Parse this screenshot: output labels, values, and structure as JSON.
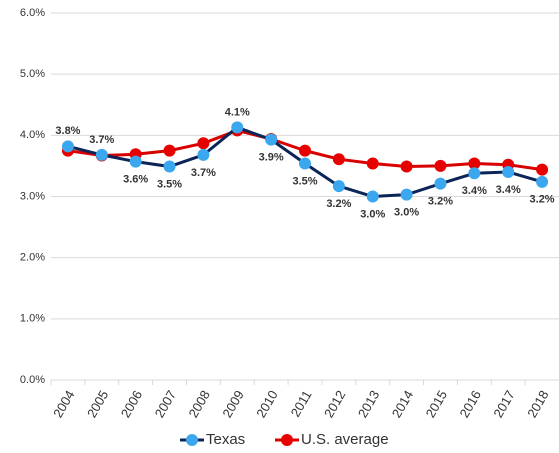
{
  "chart_data": {
    "type": "line",
    "categories": [
      "2004",
      "2005",
      "2006",
      "2007",
      "2008",
      "2009",
      "2010",
      "2011",
      "2012",
      "2013",
      "2014",
      "2015",
      "2016",
      "2017",
      "2018"
    ],
    "series": [
      {
        "name": "Texas",
        "color": "#0b2559",
        "marker_color": "#3ba7ee",
        "values": [
          3.82,
          3.68,
          3.57,
          3.49,
          3.68,
          4.13,
          3.93,
          3.54,
          3.17,
          3.0,
          3.03,
          3.21,
          3.38,
          3.4,
          3.24
        ],
        "value_labels": [
          "3.8%",
          "3.7%",
          "3.6%",
          "3.5%",
          "3.7%",
          "4.1%",
          "3.9%",
          "3.5%",
          "3.2%",
          "3.0%",
          "3.0%",
          "3.2%",
          "3.4%",
          "3.4%",
          "3.2%"
        ]
      },
      {
        "name": "U.S. average",
        "color": "#d90000",
        "marker_color": "#e60000",
        "values": [
          3.75,
          3.67,
          3.69,
          3.75,
          3.87,
          4.08,
          3.94,
          3.75,
          3.61,
          3.54,
          3.49,
          3.5,
          3.54,
          3.52,
          3.44
        ]
      }
    ],
    "ylim": [
      0,
      6
    ],
    "yticks": [
      {
        "value": 0,
        "label": "0.0%"
      },
      {
        "value": 1,
        "label": "1.0%"
      },
      {
        "value": 2,
        "label": "2.0%"
      },
      {
        "value": 3,
        "label": "3.0%"
      },
      {
        "value": 4,
        "label": "4.0%"
      },
      {
        "value": 5,
        "label": "5.0%"
      },
      {
        "value": 6,
        "label": "6.0%"
      }
    ],
    "grid": true,
    "legend": "bottom"
  }
}
